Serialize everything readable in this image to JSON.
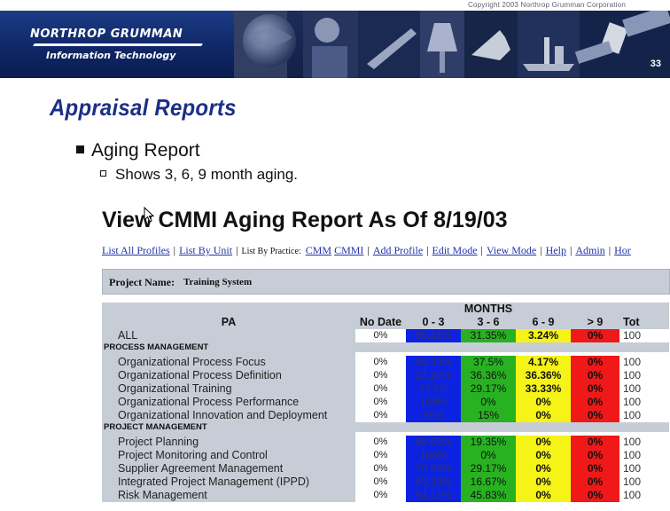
{
  "banner": {
    "copyright": "Copyright 2003 Northrop Grumman Corporation",
    "logo_main": "NORTHROP GRUMMAN",
    "logo_sub": "Information Technology",
    "page_number": "33",
    "colors": {
      "banner_bg": "#0d1f55",
      "logo_panel": "#1c3c86"
    }
  },
  "slide": {
    "title": "Appraisal Reports",
    "bullet_1": "Aging Report",
    "bullet_2": "Shows 3, 6, 9 month aging."
  },
  "report": {
    "title": "View CMMI Aging Report As Of 8/19/03",
    "nav": {
      "links_before": [
        "List All Profiles",
        "List By Unit"
      ],
      "list_by_practice_label": "List By Practice:",
      "links_after": [
        "CMM",
        "CMMI",
        "Add Profile",
        "Edit Mode",
        "View Mode",
        "Help",
        "Admin",
        "Hor"
      ]
    },
    "project_label": "Project Name:",
    "project_value": "Training System",
    "headers": {
      "months": "MONTHS",
      "pa": "PA",
      "no_date": "No Date",
      "m0_3": "0 - 3",
      "m3_6": "3 - 6",
      "m6_9": "6 - 9",
      "gt9": "> 9",
      "total": "Tot"
    },
    "all_row": {
      "name": "ALL",
      "no_date": "0%",
      "m0_3": "65.41%",
      "m3_6": "31.35%",
      "m6_9": "3.24%",
      "gt9": "0%",
      "total": "100"
    },
    "groups": [
      {
        "name": "PROCESS MANAGEMENT",
        "rows": [
          {
            "name": "Organizational Process Focus",
            "no_date": "0%",
            "m0_3": "58.33%",
            "m3_6": "37.5%",
            "m6_9": "4.17%",
            "gt9": "0%",
            "total": "100"
          },
          {
            "name": "Organizational Process Definition",
            "no_date": "0%",
            "m0_3": "27.27%",
            "m3_6": "36.36%",
            "m6_9": "36.36%",
            "gt9": "0%",
            "total": "100"
          },
          {
            "name": "Organizational Training",
            "no_date": "0%",
            "m0_3": "37.5%",
            "m3_6": "29.17%",
            "m6_9": "33.33%",
            "gt9": "0%",
            "total": "100"
          },
          {
            "name": "Organizational Process Performance",
            "no_date": "0%",
            "m0_3": "100%",
            "m3_6": "0%",
            "m6_9": "0%",
            "gt9": "0%",
            "total": "100"
          },
          {
            "name": "Organizational Innovation and Deployment",
            "no_date": "0%",
            "m0_3": "85%",
            "m3_6": "15%",
            "m6_9": "0%",
            "gt9": "0%",
            "total": "100"
          }
        ]
      },
      {
        "name": "PROJECT MANAGEMENT",
        "rows": [
          {
            "name": "Project Planning",
            "no_date": "0%",
            "m0_3": "80.65%",
            "m3_6": "19.35%",
            "m6_9": "0%",
            "gt9": "0%",
            "total": "100"
          },
          {
            "name": "Project Monitoring and Control",
            "no_date": "0%",
            "m0_3": "100%",
            "m3_6": "0%",
            "m6_9": "0%",
            "gt9": "0%",
            "total": "100"
          },
          {
            "name": "Supplier Agreement Management",
            "no_date": "0%",
            "m0_3": "70.83%",
            "m3_6": "29.17%",
            "m6_9": "0%",
            "gt9": "0%",
            "total": "100"
          },
          {
            "name": "Integrated Project Management (IPPD)",
            "no_date": "0%",
            "m0_3": "83.33%",
            "m3_6": "16.67%",
            "m6_9": "0%",
            "gt9": "0%",
            "total": "100"
          },
          {
            "name": "Risk Management",
            "no_date": "0%",
            "m0_3": "54.17%",
            "m3_6": "45.83%",
            "m6_9": "0%",
            "gt9": "0%",
            "total": "100"
          }
        ]
      }
    ],
    "colors": {
      "m0_3": "#0b22e0",
      "m3_6": "#28b222",
      "m6_9": "#f6f416",
      "gt9": "#f01818",
      "header_gray": "#c7cdd6"
    }
  }
}
